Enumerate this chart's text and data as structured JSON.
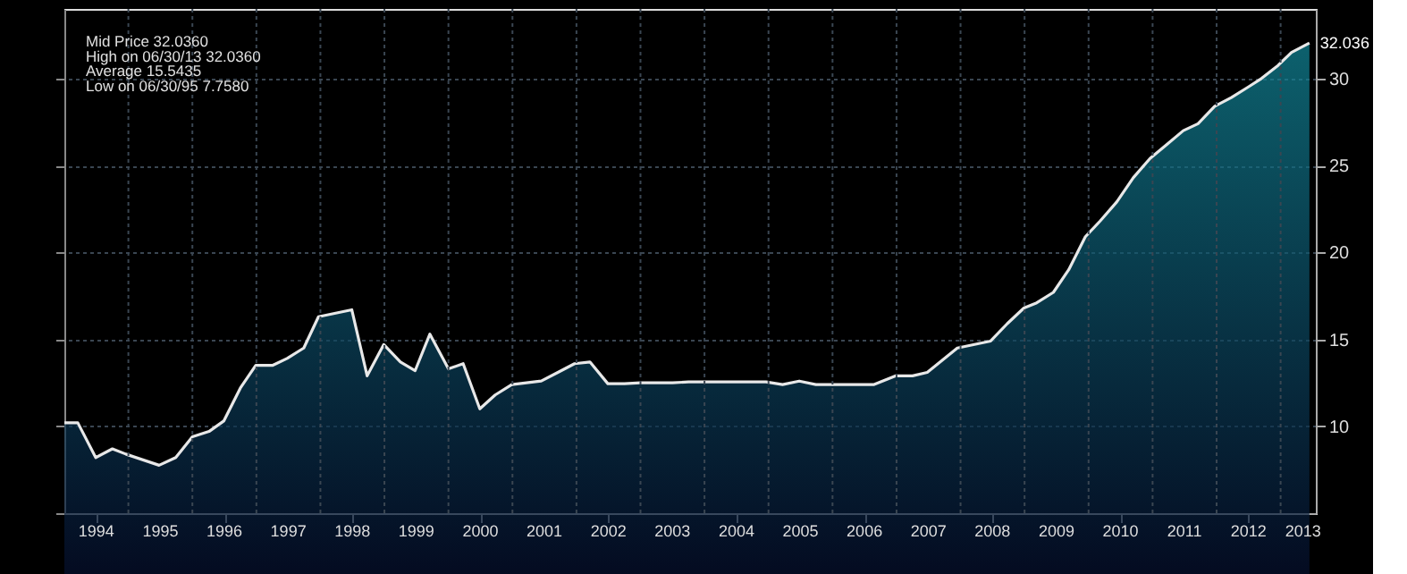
{
  "chart_data": {
    "type": "area",
    "x": [
      1994.0,
      1994.21,
      1994.49,
      1994.75,
      1994.96,
      1995.48,
      1995.74,
      1996.0,
      1996.26,
      1996.49,
      1996.75,
      1996.99,
      1997.25,
      1997.48,
      1997.74,
      1997.97,
      1998.49,
      1998.73,
      1998.99,
      1999.25,
      1999.48,
      1999.71,
      2000.0,
      2000.23,
      2000.49,
      2000.73,
      2000.99,
      2001.22,
      2001.45,
      2001.71,
      2001.97,
      2002.21,
      2002.49,
      2002.75,
      2003.0,
      2003.25,
      2003.5,
      2003.75,
      2004.0,
      2004.39,
      2004.96,
      2005.22,
      2005.48,
      2005.74,
      2006.65,
      2006.99,
      2007.25,
      2007.48,
      2007.95,
      2008.47,
      2008.73,
      2008.99,
      2009.19,
      2009.45,
      2009.69,
      2009.95,
      2010.18,
      2010.44,
      2010.7,
      2010.96,
      2011.22,
      2011.48,
      2011.71,
      2011.97,
      2012.23,
      2012.49,
      2012.7,
      2012.96,
      2013.17,
      2013.45
    ],
    "series": [
      {
        "color": "#128a9c",
        "values": [
          10.2,
          10.2,
          8.2,
          8.7,
          8.4,
          7.758,
          8.2,
          9.4,
          9.7,
          10.3,
          12.2,
          13.5,
          13.5,
          13.9,
          14.5,
          16.3,
          16.7,
          12.9,
          14.7,
          13.7,
          13.2,
          15.3,
          13.3,
          13.6,
          11.0,
          11.8,
          12.4,
          12.5,
          12.6,
          13.1,
          13.6,
          13.7,
          12.45,
          12.45,
          12.5,
          12.5,
          12.5,
          12.55,
          12.55,
          12.55,
          12.55,
          12.4,
          12.6,
          12.4,
          12.4,
          12.9,
          12.9,
          13.1,
          14.5,
          14.9,
          15.9,
          16.8,
          17.1,
          17.7,
          19.0,
          20.9,
          21.8,
          22.9,
          24.3,
          25.4,
          26.2,
          27.0,
          27.4,
          28.4,
          28.9,
          29.5,
          30.0,
          30.75,
          31.5,
          32.036
        ]
      }
    ],
    "xlim": [
      1994,
      2013.55
    ],
    "xticks": [
      {
        "value": 1994.5,
        "label": "1994"
      },
      {
        "value": 1995,
        "label": null
      },
      {
        "value": 1995.5,
        "label": "1995"
      },
      {
        "value": 1996,
        "label": null
      },
      {
        "value": 1996.5,
        "label": "1996"
      },
      {
        "value": 1997,
        "label": null
      },
      {
        "value": 1997.5,
        "label": "1997"
      },
      {
        "value": 1998,
        "label": null
      },
      {
        "value": 1998.5,
        "label": "1998"
      },
      {
        "value": 1999,
        "label": null
      },
      {
        "value": 1999.5,
        "label": "1999"
      },
      {
        "value": 2000,
        "label": null
      },
      {
        "value": 2000.5,
        "label": "2000"
      },
      {
        "value": 2001,
        "label": null
      },
      {
        "value": 2001.5,
        "label": "2001"
      },
      {
        "value": 2002,
        "label": null
      },
      {
        "value": 2002.5,
        "label": "2002"
      },
      {
        "value": 2003,
        "label": null
      },
      {
        "value": 2003.5,
        "label": "2003"
      },
      {
        "value": 2004,
        "label": null
      },
      {
        "value": 2004.5,
        "label": "2004"
      },
      {
        "value": 2005,
        "label": null
      },
      {
        "value": 2005.5,
        "label": "2005"
      },
      {
        "value": 2006,
        "label": null
      },
      {
        "value": 2006.5,
        "label": "2006"
      },
      {
        "value": 2007,
        "label": null
      },
      {
        "value": 2007.5,
        "label": "2007"
      },
      {
        "value": 2008,
        "label": null
      },
      {
        "value": 2008.5,
        "label": "2008"
      },
      {
        "value": 2009,
        "label": null
      },
      {
        "value": 2009.5,
        "label": "2009"
      },
      {
        "value": 2010,
        "label": null
      },
      {
        "value": 2010.5,
        "label": "2010"
      },
      {
        "value": 2011,
        "label": null
      },
      {
        "value": 2011.5,
        "label": "2011"
      },
      {
        "value": 2012,
        "label": null
      },
      {
        "value": 2012.5,
        "label": "2012"
      },
      {
        "value": 2013,
        "label": null
      },
      {
        "value": 2013.35,
        "label": "2013"
      }
    ],
    "ylim": [
      5,
      34
    ],
    "yticks": [
      10,
      15,
      20,
      25,
      30
    ],
    "grid": true,
    "annotations": [
      "Mid Price     32.0360",
      "High on 06/30/13  32.0360",
      "Average     15.5435",
      "Low on 06/30/95   7.7580",
      {
        "text": "32.036",
        "x": 2013.45,
        "y": 32.036
      }
    ]
  }
}
